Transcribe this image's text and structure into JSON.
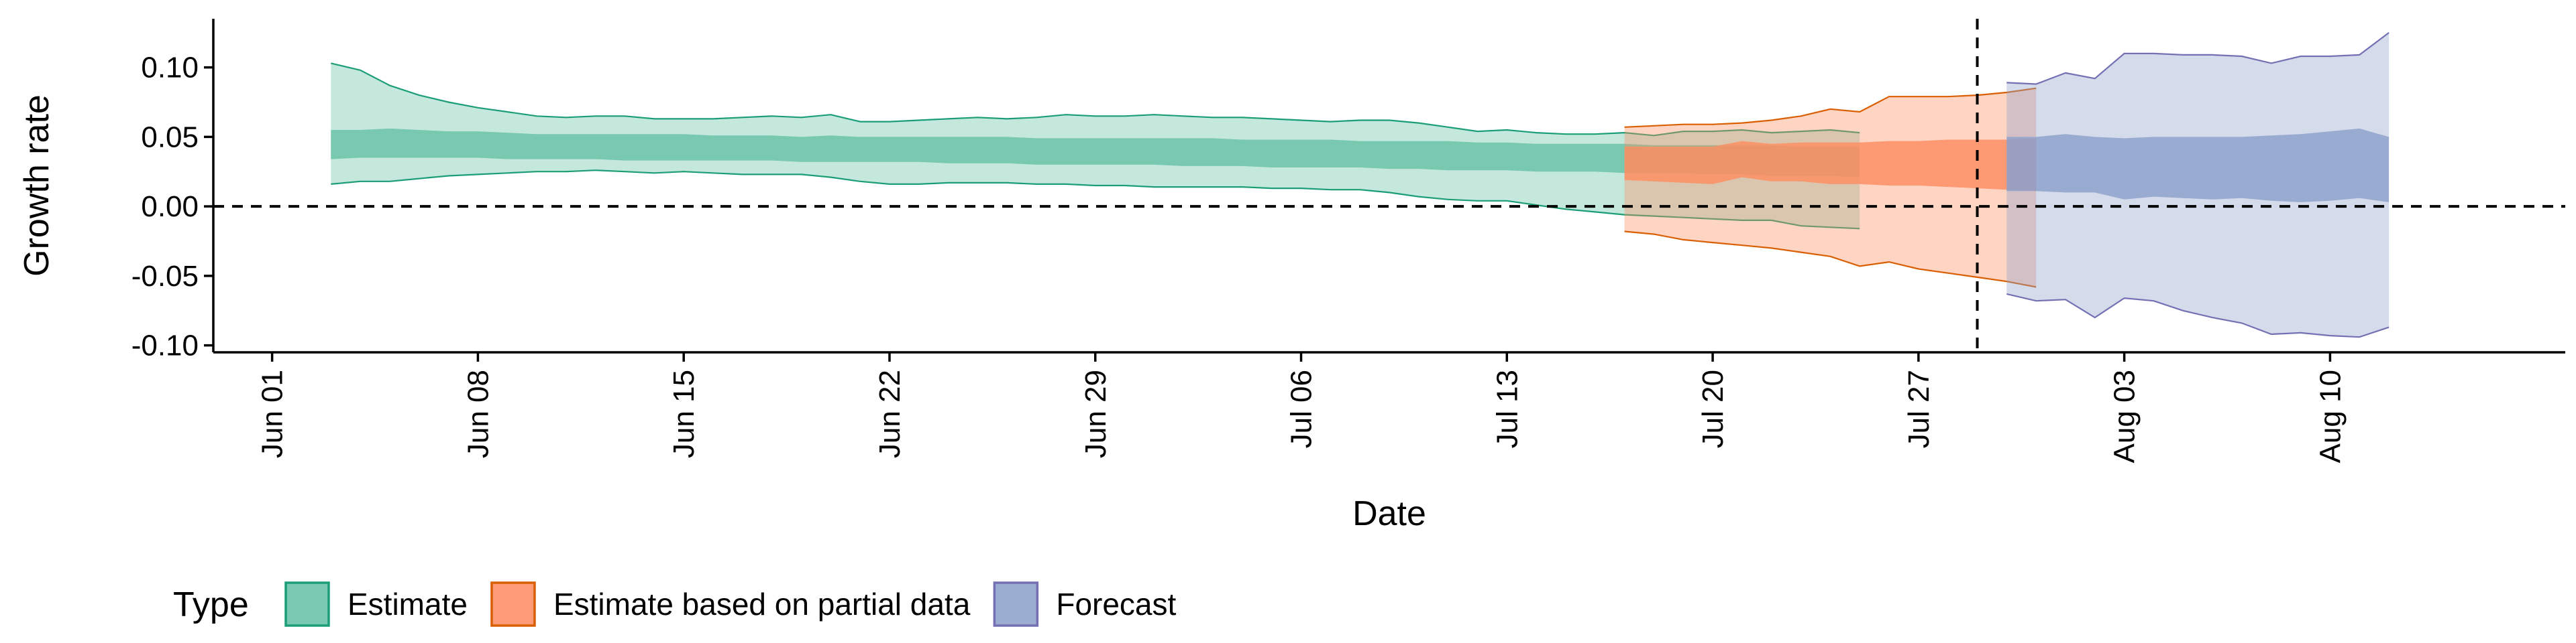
{
  "chart_data": {
    "type": "area",
    "xlabel": "Date",
    "ylabel": "Growth rate",
    "x_axis": {
      "type": "date",
      "ticks": [
        "2020-06-01",
        "2020-06-08",
        "2020-06-15",
        "2020-06-22",
        "2020-06-29",
        "2020-07-06",
        "2020-07-13",
        "2020-07-20",
        "2020-07-27",
        "2020-08-03",
        "2020-08-10"
      ],
      "tick_labels": [
        "Jun 01",
        "Jun 08",
        "Jun 15",
        "Jun 22",
        "Jun 29",
        "Jul 06",
        "Jul 13",
        "Jul 20",
        "Jul 27",
        "Aug 03",
        "Aug 10"
      ],
      "range": [
        "2020-05-30",
        "2020-08-18"
      ]
    },
    "y_axis": {
      "ticks": [
        -0.1,
        -0.05,
        0.0,
        0.05,
        0.1
      ],
      "tick_labels": [
        "-0.10",
        "-0.05",
        "0.00",
        "0.05",
        "0.10"
      ],
      "range": [
        -0.105,
        0.135
      ]
    },
    "reference_lines": {
      "horizontal_y": 0.0,
      "vertical_date": "2020-07-29"
    },
    "legend": {
      "title": "Type",
      "position": "bottom",
      "entries": [
        {
          "label": "Estimate",
          "fill": "#66c2a5",
          "stroke": "#1b9e77"
        },
        {
          "label": "Estimate based on partial data",
          "fill": "#fc8d62",
          "stroke": "#d95f02"
        },
        {
          "label": "Forecast",
          "fill": "#8da0cb",
          "stroke": "#7570b3"
        }
      ]
    },
    "series": [
      {
        "type_index": 0,
        "start": "2020-06-03",
        "outer_upper": [
          0.103,
          0.098,
          0.087,
          0.08,
          0.075,
          0.071,
          0.068,
          0.065,
          0.064,
          0.065,
          0.065,
          0.063,
          0.063,
          0.063,
          0.064,
          0.065,
          0.064,
          0.066,
          0.061,
          0.061,
          0.062,
          0.063,
          0.064,
          0.063,
          0.064,
          0.066,
          0.065,
          0.065,
          0.066,
          0.065,
          0.064,
          0.064,
          0.063,
          0.062,
          0.061,
          0.062,
          0.062,
          0.06,
          0.057,
          0.054,
          0.055,
          0.053,
          0.052,
          0.052,
          0.053,
          0.051,
          0.054,
          0.054,
          0.055,
          0.053,
          0.054,
          0.055,
          0.053
        ],
        "inner_upper": [
          0.055,
          0.055,
          0.056,
          0.055,
          0.054,
          0.054,
          0.053,
          0.052,
          0.052,
          0.052,
          0.052,
          0.052,
          0.052,
          0.051,
          0.051,
          0.051,
          0.05,
          0.051,
          0.05,
          0.05,
          0.05,
          0.05,
          0.05,
          0.05,
          0.049,
          0.049,
          0.049,
          0.049,
          0.049,
          0.049,
          0.049,
          0.048,
          0.048,
          0.048,
          0.048,
          0.047,
          0.047,
          0.047,
          0.047,
          0.046,
          0.046,
          0.045,
          0.045,
          0.045,
          0.045,
          0.044,
          0.044,
          0.044,
          0.044,
          0.044,
          0.043,
          0.043,
          0.043
        ],
        "inner_lower": [
          0.034,
          0.035,
          0.035,
          0.035,
          0.035,
          0.035,
          0.034,
          0.034,
          0.034,
          0.034,
          0.033,
          0.033,
          0.033,
          0.033,
          0.033,
          0.033,
          0.032,
          0.032,
          0.032,
          0.032,
          0.032,
          0.031,
          0.031,
          0.031,
          0.03,
          0.03,
          0.03,
          0.03,
          0.03,
          0.029,
          0.029,
          0.029,
          0.028,
          0.028,
          0.028,
          0.028,
          0.027,
          0.027,
          0.026,
          0.026,
          0.026,
          0.025,
          0.025,
          0.025,
          0.024,
          0.024,
          0.024,
          0.023,
          0.023,
          0.022,
          0.022,
          0.022,
          0.021
        ],
        "outer_lower": [
          0.016,
          0.018,
          0.018,
          0.02,
          0.022,
          0.023,
          0.024,
          0.025,
          0.025,
          0.026,
          0.025,
          0.024,
          0.025,
          0.024,
          0.023,
          0.023,
          0.023,
          0.021,
          0.018,
          0.016,
          0.016,
          0.017,
          0.017,
          0.017,
          0.016,
          0.016,
          0.015,
          0.015,
          0.014,
          0.014,
          0.014,
          0.014,
          0.013,
          0.013,
          0.012,
          0.012,
          0.01,
          0.007,
          0.005,
          0.004,
          0.004,
          0.001,
          -0.002,
          -0.004,
          -0.006,
          -0.007,
          -0.008,
          -0.009,
          -0.01,
          -0.01,
          -0.014,
          -0.015,
          -0.016
        ]
      },
      {
        "type_index": 1,
        "start": "2020-07-17",
        "outer_upper": [
          0.057,
          0.058,
          0.059,
          0.059,
          0.06,
          0.062,
          0.065,
          0.07,
          0.068,
          0.079,
          0.079,
          0.079,
          0.08,
          0.082,
          0.085
        ],
        "inner_upper": [
          0.043,
          0.043,
          0.043,
          0.043,
          0.047,
          0.045,
          0.046,
          0.046,
          0.046,
          0.047,
          0.047,
          0.048,
          0.048,
          0.048,
          0.049
        ],
        "inner_lower": [
          0.019,
          0.018,
          0.017,
          0.016,
          0.021,
          0.018,
          0.018,
          0.016,
          0.016,
          0.015,
          0.015,
          0.014,
          0.013,
          0.012,
          0.011
        ],
        "outer_lower": [
          -0.018,
          -0.02,
          -0.024,
          -0.026,
          -0.028,
          -0.03,
          -0.033,
          -0.036,
          -0.043,
          -0.04,
          -0.045,
          -0.048,
          -0.051,
          -0.054,
          -0.058
        ]
      },
      {
        "type_index": 2,
        "start": "2020-07-30",
        "outer_upper": [
          0.089,
          0.088,
          0.096,
          0.092,
          0.11,
          0.11,
          0.109,
          0.109,
          0.108,
          0.103,
          0.108,
          0.108,
          0.109,
          0.125
        ],
        "inner_upper": [
          0.05,
          0.05,
          0.052,
          0.05,
          0.049,
          0.05,
          0.05,
          0.05,
          0.05,
          0.051,
          0.052,
          0.054,
          0.056,
          0.05
        ],
        "inner_lower": [
          0.011,
          0.011,
          0.01,
          0.01,
          0.005,
          0.007,
          0.006,
          0.005,
          0.006,
          0.004,
          0.003,
          0.004,
          0.006,
          0.003
        ],
        "outer_lower": [
          -0.063,
          -0.068,
          -0.067,
          -0.08,
          -0.066,
          -0.068,
          -0.075,
          -0.08,
          -0.084,
          -0.092,
          -0.091,
          -0.093,
          -0.094,
          -0.087
        ]
      }
    ]
  }
}
